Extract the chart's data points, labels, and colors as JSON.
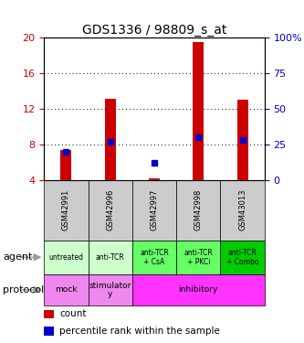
{
  "title": "GDS1336 / 98809_s_at",
  "samples": [
    "GSM42991",
    "GSM42996",
    "GSM42997",
    "GSM42998",
    "GSM43013"
  ],
  "count_bottom": [
    4.0,
    4.0,
    4.0,
    4.0,
    4.0
  ],
  "count_top": [
    7.35,
    13.1,
    4.15,
    19.5,
    13.0
  ],
  "percentile_values": [
    20.0,
    27.0,
    12.0,
    30.0,
    28.0
  ],
  "ylim": [
    4,
    20
  ],
  "yticks_left": [
    4,
    8,
    12,
    16,
    20
  ],
  "yticks_right": [
    0,
    25,
    50,
    75,
    100
  ],
  "agent_labels": [
    "untreated",
    "anti-TCR",
    "anti-TCR\n+ CsA",
    "anti-TCR\n+ PKCi",
    "anti-TCR\n+ Combo"
  ],
  "agent_colors": [
    "#ccffcc",
    "#ccffcc",
    "#66ff66",
    "#66ff66",
    "#00cc00"
  ],
  "protocol_groups": [
    {
      "label": "mock",
      "cols": [
        0
      ],
      "color": "#ee88ee"
    },
    {
      "label": "stimulator\ny",
      "cols": [
        1
      ],
      "color": "#ee88ee"
    },
    {
      "label": "inhibitory",
      "cols": [
        2,
        3,
        4
      ],
      "color": "#ff33ff"
    }
  ],
  "gsm_bg_color": "#cccccc",
  "count_color": "#cc0000",
  "percentile_color": "#0000cc",
  "bar_width": 0.25
}
